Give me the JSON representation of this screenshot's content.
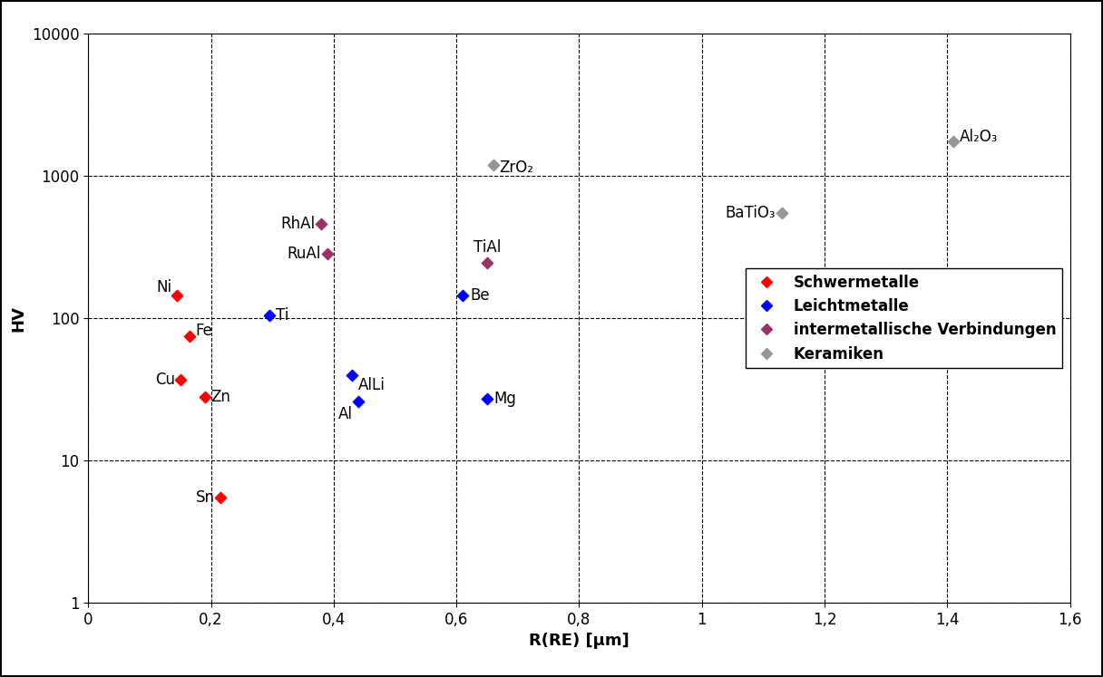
{
  "chart_data": {
    "type": "scatter",
    "x_label": "R(RE) [µm]",
    "y_label": "HV",
    "log": "y",
    "grid": true,
    "legend": "center right",
    "xlim": [
      0,
      1.6
    ],
    "xticks": [
      0,
      {
        "value": 0.2,
        "label": "0,2"
      },
      {
        "value": 0.4,
        "label": "0,4"
      },
      {
        "value": 0.6,
        "label": "0,6"
      },
      {
        "value": 0.8,
        "label": "0,8"
      },
      1,
      {
        "value": 1.2,
        "label": "1,2"
      },
      {
        "value": 1.4,
        "label": "1,4"
      },
      {
        "value": 1.6,
        "label": "1,6"
      }
    ],
    "ylim": [
      1,
      10000
    ],
    "yticks": [
      1,
      10,
      100,
      1000,
      10000
    ],
    "series": [
      {
        "name": "Schwermetalle",
        "color": "#ff0000",
        "marker": "diamond",
        "labels": [
          "Ni",
          "Fe",
          "Cu",
          "Zn",
          "Sn"
        ],
        "x": [
          0.145,
          0.165,
          0.15,
          0.19,
          0.215
        ],
        "values": [
          145,
          75,
          37,
          28,
          5.5
        ]
      },
      {
        "name": "Leichtmetalle",
        "color": "#0000ff",
        "marker": "diamond",
        "labels": [
          "Ti",
          "AlLi",
          "Al",
          "Be",
          "Mg"
        ],
        "x": [
          0.295,
          0.43,
          0.44,
          0.61,
          0.65
        ],
        "values": [
          105,
          40,
          26,
          145,
          27
        ]
      },
      {
        "name": "intermetallische Verbindungen",
        "color": "#993366",
        "marker": "diamond",
        "labels": [
          "RhAl",
          "RuAl",
          "TiAl"
        ],
        "x": [
          0.38,
          0.39,
          0.65
        ],
        "values": [
          460,
          285,
          245
        ]
      },
      {
        "name": "Keramiken",
        "color": "#969696",
        "marker": "diamond",
        "labels": [
          "ZrO₂",
          "BaTiO₃",
          "Al₂O₃"
        ],
        "x": [
          0.66,
          1.13,
          1.41
        ],
        "values": [
          1200,
          550,
          1750
        ]
      }
    ]
  }
}
